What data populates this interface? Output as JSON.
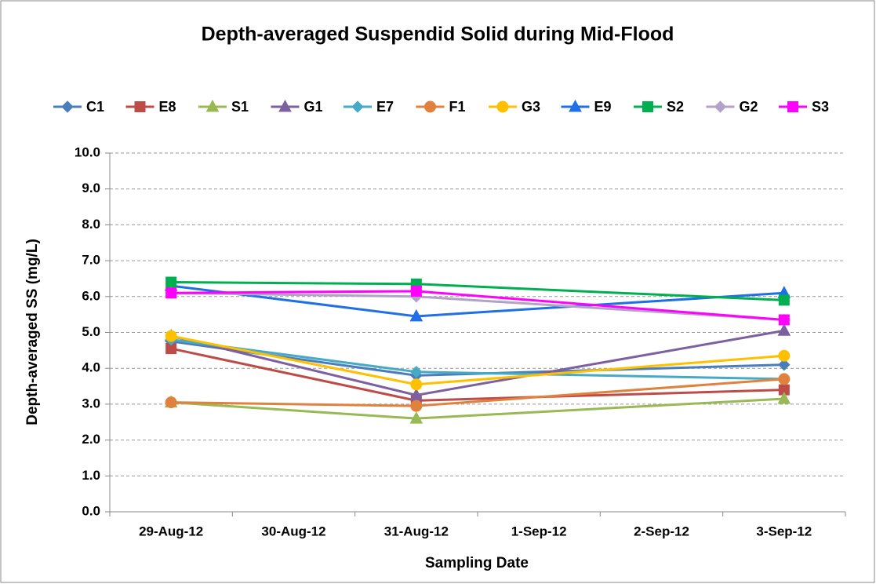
{
  "chart_data": {
    "type": "line",
    "title": "Depth-averaged Suspendid Solid during Mid-Flood",
    "x_label": "Sampling Date",
    "y_label": "Depth-averaged SS (mg/L)",
    "categories": [
      "29-Aug-12",
      "30-Aug-12",
      "31-Aug-12",
      "1-Sep-12",
      "2-Sep-12",
      "3-Sep-12"
    ],
    "x": [
      "29-Aug-12",
      "31-Aug-12",
      "3-Sep-12"
    ],
    "series": [
      {
        "name": "C1",
        "color": "#4a7ebb",
        "marker": "diamond",
        "values": [
          4.75,
          3.8,
          4.1
        ]
      },
      {
        "name": "E8",
        "color": "#be4b48",
        "marker": "square",
        "values": [
          4.55,
          3.1,
          3.4
        ]
      },
      {
        "name": "S1",
        "color": "#98b954",
        "marker": "triangle",
        "values": [
          3.05,
          2.6,
          3.15
        ]
      },
      {
        "name": "G1",
        "color": "#7d60a0",
        "marker": "triangle",
        "values": [
          4.9,
          3.25,
          5.05
        ]
      },
      {
        "name": "E7",
        "color": "#46aac5",
        "marker": "diamond",
        "values": [
          4.8,
          3.9,
          3.7
        ]
      },
      {
        "name": "F1",
        "color": "#e0823d",
        "marker": "circle",
        "values": [
          3.05,
          2.95,
          3.7
        ]
      },
      {
        "name": "G3",
        "color": "#ffc000",
        "marker": "circle",
        "values": [
          4.9,
          3.55,
          4.35
        ]
      },
      {
        "name": "E9",
        "color": "#1f6fe6",
        "marker": "triangle",
        "values": [
          6.3,
          5.45,
          6.1
        ]
      },
      {
        "name": "S2",
        "color": "#00b050",
        "marker": "square",
        "values": [
          6.4,
          6.35,
          5.9
        ]
      },
      {
        "name": "G2",
        "color": "#b3a2c7",
        "marker": "diamond",
        "values": [
          6.1,
          6.0,
          5.35
        ]
      },
      {
        "name": "S3",
        "color": "#ff00ff",
        "marker": "square",
        "values": [
          6.1,
          6.15,
          5.35
        ]
      }
    ],
    "ylim": [
      0,
      10
    ],
    "yticks": [
      {
        "value": 0,
        "label": "0.0"
      },
      {
        "value": 1,
        "label": "1.0"
      },
      {
        "value": 2,
        "label": "2.0"
      },
      {
        "value": 3,
        "label": "3.0"
      },
      {
        "value": 4,
        "label": "4.0"
      },
      {
        "value": 5,
        "label": "5.0"
      },
      {
        "value": 6,
        "label": "6.0"
      },
      {
        "value": 7,
        "label": "7.0"
      },
      {
        "value": 8,
        "label": "8.0"
      },
      {
        "value": 9,
        "label": "9.0"
      },
      {
        "value": 10,
        "label": "10.0"
      }
    ],
    "grid": true,
    "legend": "top"
  }
}
